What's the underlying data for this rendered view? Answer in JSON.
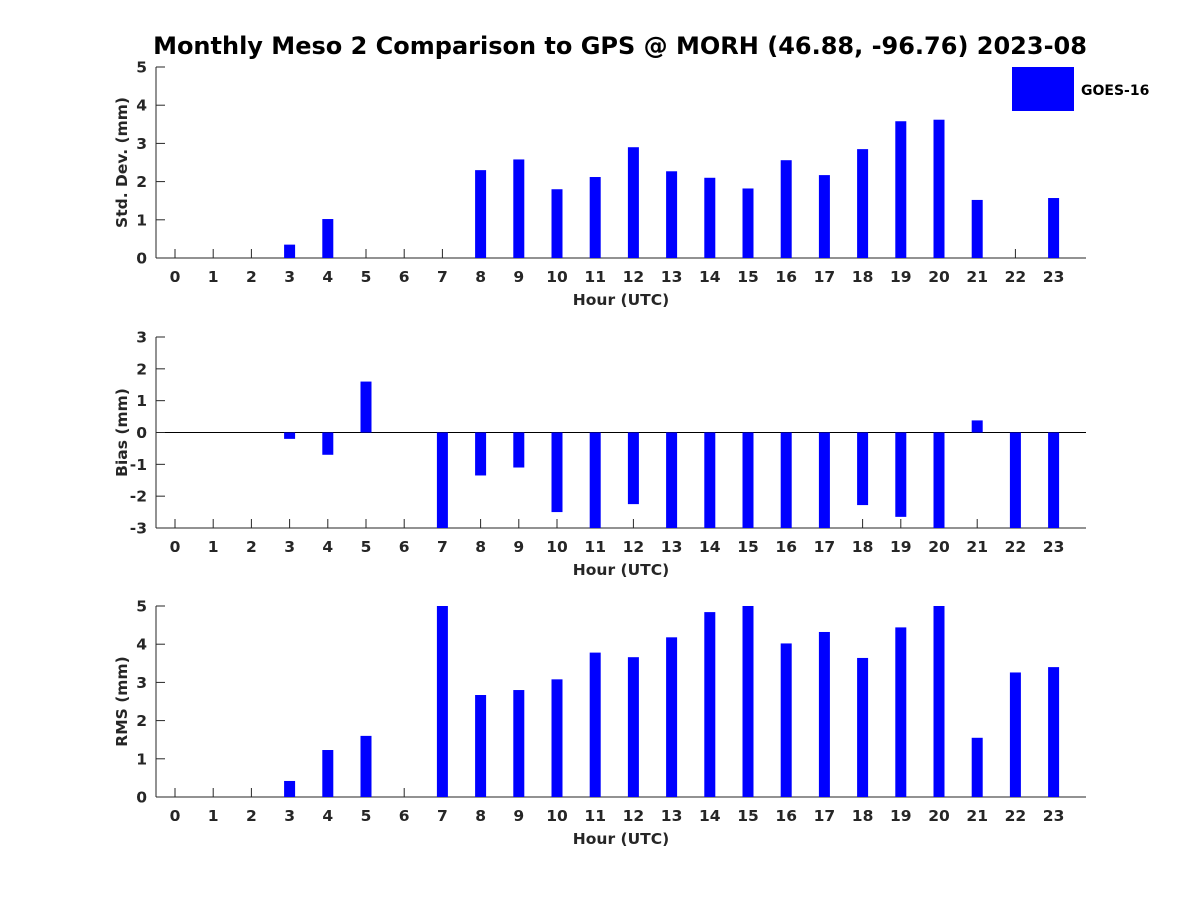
{
  "title": "Monthly Meso 2 Comparison to GPS @ MORH (46.88, -96.76) 2023-08",
  "legend": {
    "label": "GOES-16",
    "placement": "top-right"
  },
  "colors": {
    "bar": "#0000ff",
    "axis": "#262626",
    "background": "#ffffff"
  },
  "chart_data": [
    {
      "type": "bar",
      "title": "Monthly Meso 2 Comparison to GPS @ MORH (46.88, -96.76) 2023-08",
      "xlabel": "Hour (UTC)",
      "ylabel": "Std. Dev. (mm)",
      "ylim": [
        0,
        5
      ],
      "yticks": [
        "0",
        "1",
        "2",
        "3",
        "4",
        "5"
      ],
      "categories": [
        "0",
        "1",
        "2",
        "3",
        "4",
        "5",
        "6",
        "7",
        "8",
        "9",
        "10",
        "11",
        "12",
        "13",
        "14",
        "15",
        "16",
        "17",
        "18",
        "19",
        "20",
        "21",
        "22",
        "23"
      ],
      "series": [
        {
          "name": "GOES-16",
          "values": [
            null,
            null,
            null,
            0.35,
            1.02,
            null,
            null,
            null,
            2.3,
            2.58,
            1.8,
            2.12,
            2.9,
            2.27,
            2.1,
            1.82,
            2.56,
            2.17,
            2.85,
            3.58,
            3.62,
            1.52,
            null,
            1.57
          ]
        }
      ],
      "grid": false,
      "legend": "top-right"
    },
    {
      "type": "bar",
      "xlabel": "Hour (UTC)",
      "ylabel": "Bias (mm)",
      "ylim": [
        -3,
        3
      ],
      "yticks": [
        "-3",
        "-2",
        "-1",
        "0",
        "1",
        "2",
        "3"
      ],
      "categories": [
        "0",
        "1",
        "2",
        "3",
        "4",
        "5",
        "6",
        "7",
        "8",
        "9",
        "10",
        "11",
        "12",
        "13",
        "14",
        "15",
        "16",
        "17",
        "18",
        "19",
        "20",
        "21",
        "22",
        "23"
      ],
      "series": [
        {
          "name": "GOES-16",
          "values": [
            null,
            null,
            null,
            -0.2,
            -0.7,
            1.6,
            null,
            -3,
            -1.35,
            -1.1,
            -2.5,
            -3,
            -2.25,
            -3,
            -3,
            -3,
            -3,
            -3,
            -2.28,
            -2.65,
            -3,
            0.38,
            -3,
            -3
          ]
        }
      ],
      "grid": false
    },
    {
      "type": "bar",
      "xlabel": "Hour (UTC)",
      "ylabel": "RMS (mm)",
      "ylim": [
        0,
        5
      ],
      "yticks": [
        "0",
        "1",
        "2",
        "3",
        "4",
        "5"
      ],
      "categories": [
        "0",
        "1",
        "2",
        "3",
        "4",
        "5",
        "6",
        "7",
        "8",
        "9",
        "10",
        "11",
        "12",
        "13",
        "14",
        "15",
        "16",
        "17",
        "18",
        "19",
        "20",
        "21",
        "22",
        "23"
      ],
      "series": [
        {
          "name": "GOES-16",
          "values": [
            null,
            null,
            null,
            0.42,
            1.23,
            1.6,
            null,
            5,
            2.67,
            2.8,
            3.08,
            3.78,
            3.66,
            4.18,
            4.84,
            5,
            4.02,
            4.32,
            3.64,
            4.44,
            5,
            1.55,
            3.26,
            3.4
          ]
        }
      ],
      "grid": false
    }
  ]
}
